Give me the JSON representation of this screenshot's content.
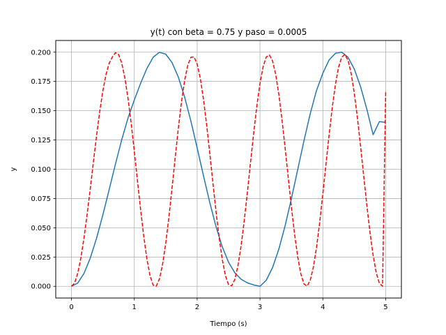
{
  "chart_data": {
    "type": "line",
    "title": "y(t) con beta = 0.75 y paso = 0.0005",
    "xlabel": "Tiempo (s)",
    "ylabel": "y",
    "xlim": [
      -0.25,
      5.25
    ],
    "ylim": [
      -0.01,
      0.21
    ],
    "x_ticks": [
      0,
      1,
      2,
      3,
      4,
      5
    ],
    "x_tick_labels": [
      "0",
      "1",
      "2",
      "3",
      "4",
      "5"
    ],
    "y_ticks": [
      0.0,
      0.025,
      0.05,
      0.075,
      0.1,
      0.125,
      0.15,
      0.175,
      0.2
    ],
    "y_tick_labels": [
      "0.000",
      "0.025",
      "0.050",
      "0.075",
      "0.100",
      "0.125",
      "0.150",
      "0.175",
      "0.200"
    ],
    "grid": true,
    "series": [
      {
        "style": "solid",
        "color": "#1f77b4",
        "x": [
          0,
          0.1,
          0.2,
          0.3,
          0.4,
          0.5,
          0.6,
          0.7,
          0.8,
          0.9,
          1.0,
          1.1,
          1.2,
          1.3,
          1.4,
          1.5,
          1.6,
          1.7,
          1.8,
          1.9,
          2.0,
          2.1,
          2.2,
          2.3,
          2.4,
          2.5,
          2.6,
          2.7,
          2.8,
          2.9,
          3.0,
          3.1,
          3.2,
          3.3,
          3.4,
          3.5,
          3.6,
          3.7,
          3.8,
          3.9,
          4.0,
          4.1,
          4.2,
          4.3,
          4.4,
          4.5,
          4.6,
          4.7,
          4.8,
          4.9,
          5.0
        ],
        "values": [
          0.0,
          0.0028,
          0.0111,
          0.0242,
          0.0412,
          0.0611,
          0.0826,
          0.1044,
          0.1252,
          0.1438,
          0.1592,
          0.1734,
          0.1861,
          0.1957,
          0.1999,
          0.1983,
          0.1912,
          0.1788,
          0.1618,
          0.1412,
          0.1183,
          0.0946,
          0.0717,
          0.051,
          0.0337,
          0.0205,
          0.0115,
          0.006,
          0.0029,
          0.0012,
          0.0,
          0.0052,
          0.016,
          0.0318,
          0.0518,
          0.0749,
          0.0997,
          0.1245,
          0.1476,
          0.1674,
          0.182,
          0.1934,
          0.199,
          0.2,
          0.1957,
          0.1857,
          0.1706,
          0.1513,
          0.1295,
          0.1407,
          0.14
        ]
      },
      {
        "style": "dashed",
        "color": "#ff0000",
        "x": [
          0,
          0.05,
          0.1,
          0.15,
          0.2,
          0.25,
          0.3,
          0.35,
          0.4,
          0.45,
          0.5,
          0.55,
          0.6,
          0.65,
          0.7,
          0.75,
          0.8,
          0.85,
          0.9,
          0.95,
          1.0,
          1.05,
          1.1,
          1.15,
          1.2,
          1.25,
          1.3,
          1.35,
          1.4,
          1.45,
          1.5,
          1.55,
          1.6,
          1.65,
          1.7,
          1.75,
          1.8,
          1.85,
          1.9,
          1.95,
          2.0,
          2.05,
          2.1,
          2.15,
          2.2,
          2.25,
          2.3,
          2.35,
          2.4,
          2.45,
          2.5,
          2.55,
          2.6,
          2.65,
          2.7,
          2.75,
          2.8,
          2.85,
          2.9,
          2.95,
          3.0,
          3.05,
          3.1,
          3.15,
          3.2,
          3.25,
          3.3,
          3.35,
          3.4,
          3.45,
          3.5,
          3.55,
          3.6,
          3.65,
          3.7,
          3.75,
          3.8,
          3.85,
          3.9,
          3.95,
          4.0,
          4.05,
          4.1,
          4.15,
          4.2,
          4.25,
          4.3,
          4.35,
          4.4,
          4.45,
          4.5,
          4.55,
          4.6,
          4.65,
          4.7,
          4.75,
          4.8,
          4.85,
          4.9,
          4.95,
          5.0
        ],
        "values": [
          0.0,
          0.0028,
          0.0111,
          0.0243,
          0.0415,
          0.0617,
          0.0838,
          0.1066,
          0.1289,
          0.1494,
          0.1671,
          0.181,
          0.1905,
          0.1958,
          0.1996,
          0.198,
          0.1907,
          0.1779,
          0.1604,
          0.1392,
          0.1154,
          0.0903,
          0.0656,
          0.0428,
          0.0235,
          0.0091,
          0.001,
          0.0002,
          0.0063,
          0.0188,
          0.0367,
          0.0589,
          0.0837,
          0.1096,
          0.1347,
          0.1572,
          0.1756,
          0.1887,
          0.1956,
          0.196,
          0.1899,
          0.1776,
          0.16,
          0.1383,
          0.114,
          0.0887,
          0.064,
          0.0416,
          0.0229,
          0.0091,
          0.0014,
          0.0004,
          0.006,
          0.0178,
          0.035,
          0.0564,
          0.0806,
          0.1061,
          0.1311,
          0.1541,
          0.1734,
          0.1877,
          0.1959,
          0.1976,
          0.1925,
          0.181,
          0.1638,
          0.1423,
          0.118,
          0.0925,
          0.0675,
          0.0446,
          0.0252,
          0.0106,
          0.002,
          0.0002,
          0.0052,
          0.0166,
          0.0334,
          0.0547,
          0.0789,
          0.1045,
          0.1296,
          0.1528,
          0.1724,
          0.1871,
          0.1957,
          0.1979,
          0.1932,
          0.182,
          0.1652,
          0.1439,
          0.1198,
          0.0944,
          0.0693,
          0.0462,
          0.0265,
          0.0115,
          0.0025,
          0.0001,
          0.167
        ]
      }
    ]
  }
}
